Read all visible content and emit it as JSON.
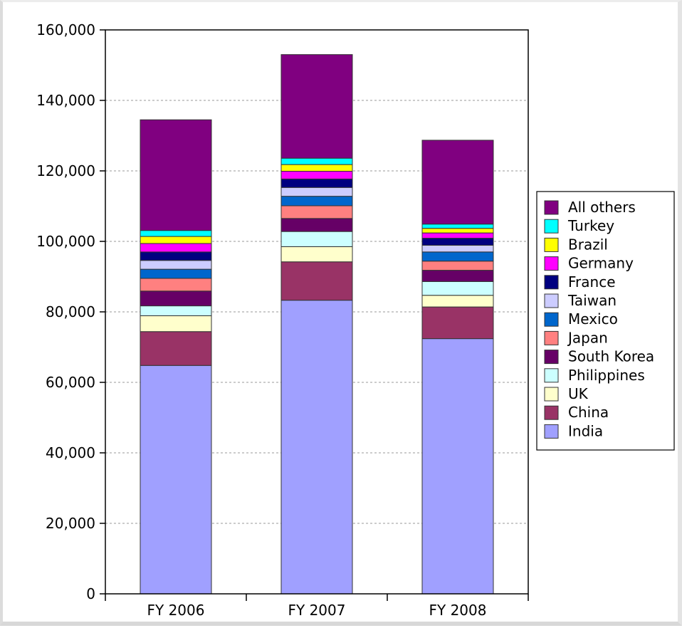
{
  "chart_data": {
    "type": "bar",
    "stacked": true,
    "categories": [
      "FY 2006",
      "FY 2007",
      "FY 2008"
    ],
    "ylim": [
      0,
      160000
    ],
    "yticks": [
      0,
      20000,
      40000,
      60000,
      80000,
      100000,
      120000,
      140000,
      160000
    ],
    "ytick_labels": [
      "0",
      "20,000",
      "40,000",
      "60,000",
      "80,000",
      "100,000",
      "120,000",
      "140,000",
      "160,000"
    ],
    "grid": "horizontal dashed",
    "legend_position": "right",
    "series": [
      {
        "name": "India",
        "color": "#a0a0ff",
        "values": [
          64800,
          83300,
          72400
        ]
      },
      {
        "name": "China",
        "color": "#993366",
        "values": [
          9600,
          10900,
          9000
        ]
      },
      {
        "name": "UK",
        "color": "#ffffcc",
        "values": [
          4500,
          4300,
          3300
        ]
      },
      {
        "name": "Philippines",
        "color": "#ccffff",
        "values": [
          2800,
          4300,
          3900
        ]
      },
      {
        "name": "South Korea",
        "color": "#660066",
        "values": [
          4200,
          3700,
          3200
        ]
      },
      {
        "name": "Japan",
        "color": "#ff8080",
        "values": [
          3600,
          3600,
          2600
        ]
      },
      {
        "name": "Mexico",
        "color": "#0066cc",
        "values": [
          2600,
          2700,
          2600
        ]
      },
      {
        "name": "Taiwan",
        "color": "#ccccff",
        "values": [
          2500,
          2500,
          1900
        ]
      },
      {
        "name": "France",
        "color": "#000080",
        "values": [
          2400,
          2400,
          2000
        ]
      },
      {
        "name": "Germany",
        "color": "#ff00ff",
        "values": [
          2400,
          2200,
          1500
        ]
      },
      {
        "name": "Brazil",
        "color": "#ffff00",
        "values": [
          2000,
          1900,
          1300
        ]
      },
      {
        "name": "Turkey",
        "color": "#00ffff",
        "values": [
          1700,
          1800,
          1200
        ]
      },
      {
        "name": "All others",
        "color": "#800080",
        "values": [
          31400,
          29400,
          23800
        ]
      }
    ]
  }
}
